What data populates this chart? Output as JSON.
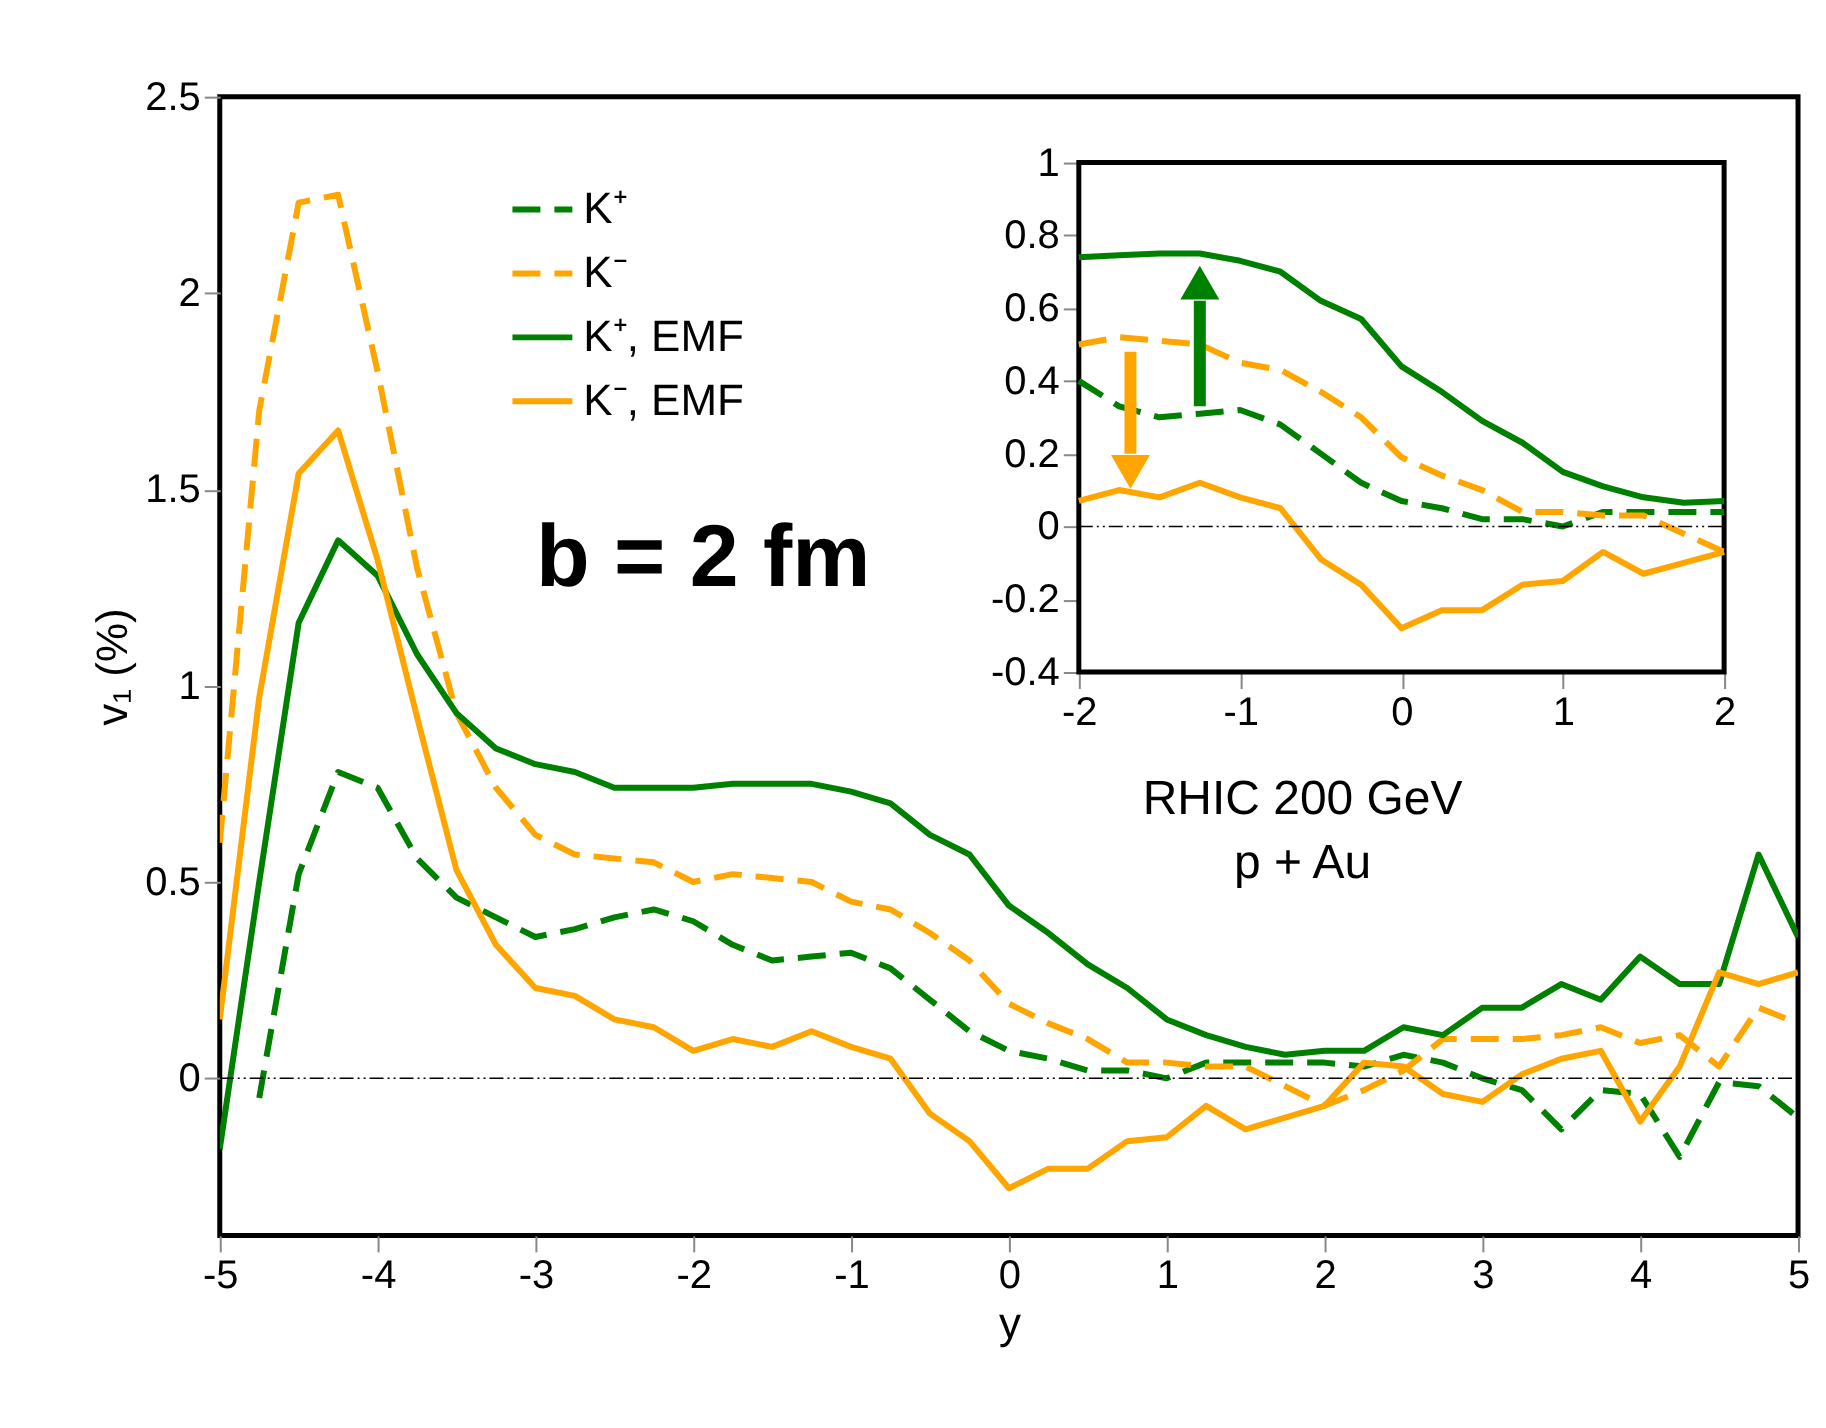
{
  "chart_data": [
    {
      "type": "line",
      "xlabel": "y",
      "ylabel": "v₁ (%)",
      "xlim": [
        -5,
        5
      ],
      "ylim": [
        -0.4,
        2.5
      ],
      "xticks": [
        -5,
        -4,
        -3,
        -2,
        -1,
        0,
        1,
        2,
        3,
        4,
        5
      ],
      "yticks": [
        0,
        0.5,
        1,
        1.5,
        2,
        2.5
      ],
      "grid": false,
      "legend": "top left",
      "x": [
        -5,
        -4.75,
        -4.5,
        -4.25,
        -4,
        -3.75,
        -3.5,
        -3.25,
        -3,
        -2.75,
        -2.5,
        -2.25,
        -2,
        -1.75,
        -1.5,
        -1.25,
        -1,
        -0.75,
        -0.5,
        -0.25,
        0,
        0.25,
        0.5,
        0.75,
        1,
        1.25,
        1.5,
        1.75,
        2,
        2.25,
        2.5,
        2.75,
        3,
        3.25,
        3.5,
        3.75,
        4,
        4.25,
        4.5,
        4.75,
        5
      ],
      "series": [
        {
          "name": "K⁺",
          "color": "#008000",
          "line_style": "dashed",
          "values": [
            null,
            -0.05,
            0.52,
            0.78,
            0.74,
            0.56,
            0.46,
            0.41,
            0.36,
            0.38,
            0.41,
            0.43,
            0.4,
            0.34,
            0.3,
            0.31,
            0.32,
            0.28,
            0.2,
            0.12,
            0.07,
            0.05,
            0.02,
            0.02,
            0.0,
            0.04,
            0.04,
            0.04,
            0.04,
            0.03,
            0.06,
            0.04,
            0.0,
            -0.03,
            -0.13,
            -0.03,
            -0.04,
            -0.2,
            -0.01,
            -0.02,
            -0.1
          ]
        },
        {
          "name": "K⁻",
          "color": "#ffa500",
          "line_style": "dashed",
          "values": [
            0.6,
            1.7,
            2.23,
            2.25,
            1.8,
            1.3,
            0.93,
            0.74,
            0.62,
            0.57,
            0.56,
            0.55,
            0.5,
            0.52,
            0.51,
            0.5,
            0.45,
            0.43,
            0.37,
            0.3,
            0.19,
            0.14,
            0.1,
            0.04,
            0.04,
            0.03,
            0.03,
            -0.02,
            -0.07,
            -0.03,
            0.02,
            0.1,
            0.1,
            0.1,
            0.11,
            0.13,
            0.09,
            0.11,
            0.03,
            0.18,
            0.14
          ]
        },
        {
          "name": "K⁺, EMF",
          "color": "#008000",
          "line_style": "solid",
          "values": [
            -0.18,
            0.5,
            1.16,
            1.37,
            1.28,
            1.08,
            0.93,
            0.84,
            0.8,
            0.78,
            0.74,
            0.74,
            0.74,
            0.75,
            0.75,
            0.75,
            0.73,
            0.7,
            0.62,
            0.57,
            0.44,
            0.37,
            0.29,
            0.23,
            0.15,
            0.11,
            0.08,
            0.06,
            0.07,
            0.07,
            0.13,
            0.11,
            0.18,
            0.18,
            0.24,
            0.2,
            0.31,
            0.24,
            0.24,
            0.57,
            0.36
          ]
        },
        {
          "name": "K⁻, EMF",
          "color": "#ffa500",
          "line_style": "solid",
          "values": [
            0.15,
            0.97,
            1.54,
            1.65,
            1.32,
            0.92,
            0.53,
            0.34,
            0.23,
            0.21,
            0.15,
            0.13,
            0.07,
            0.1,
            0.08,
            0.12,
            0.08,
            0.05,
            -0.09,
            -0.16,
            -0.28,
            -0.23,
            -0.23,
            -0.16,
            -0.15,
            -0.07,
            -0.13,
            -0.1,
            -0.07,
            0.04,
            0.03,
            -0.04,
            -0.06,
            0.01,
            0.05,
            0.07,
            -0.11,
            0.03,
            0.27,
            0.24,
            0.27
          ]
        }
      ],
      "ref_lines": [
        {
          "axis": "y",
          "value": 0
        }
      ],
      "annotations": [
        "b = 2 fm",
        "RHIC 200 GeV",
        "p + Au"
      ]
    },
    {
      "type": "line",
      "xlim": [
        -2,
        2
      ],
      "ylim": [
        -0.4,
        1
      ],
      "xticks": [
        -2,
        -1,
        0,
        1,
        2
      ],
      "yticks": [
        -0.4,
        -0.2,
        0,
        0.2,
        0.4,
        0.6,
        0.8,
        1
      ],
      "grid": false,
      "x": [
        -2,
        -1.75,
        -1.5,
        -1.25,
        -1,
        -0.75,
        -0.5,
        -0.25,
        0,
        0.25,
        0.5,
        0.75,
        1,
        1.25,
        1.5,
        1.75,
        2
      ],
      "series": [
        {
          "color": "#008000",
          "line_style": "dashed",
          "values": [
            0.4,
            0.33,
            0.3,
            0.31,
            0.32,
            0.28,
            0.2,
            0.12,
            0.07,
            0.05,
            0.02,
            0.02,
            0.0,
            0.04,
            0.04,
            0.04,
            0.04
          ]
        },
        {
          "color": "#ffa500",
          "line_style": "dashed",
          "values": [
            0.5,
            0.52,
            0.51,
            0.5,
            0.45,
            0.43,
            0.37,
            0.3,
            0.19,
            0.14,
            0.1,
            0.04,
            0.04,
            0.03,
            0.03,
            -0.02,
            -0.07
          ]
        },
        {
          "color": "#008000",
          "line_style": "solid",
          "values": [
            0.74,
            0.745,
            0.75,
            0.75,
            0.73,
            0.7,
            0.62,
            0.57,
            0.44,
            0.37,
            0.29,
            0.23,
            0.15,
            0.11,
            0.08,
            0.065,
            0.07
          ]
        },
        {
          "color": "#ffa500",
          "line_style": "solid",
          "values": [
            0.07,
            0.1,
            0.08,
            0.12,
            0.08,
            0.05,
            -0.09,
            -0.16,
            -0.28,
            -0.23,
            -0.23,
            -0.16,
            -0.15,
            -0.07,
            -0.13,
            -0.1,
            -0.07
          ]
        }
      ],
      "ref_lines": [
        {
          "axis": "y",
          "value": 0
        }
      ]
    }
  ]
}
